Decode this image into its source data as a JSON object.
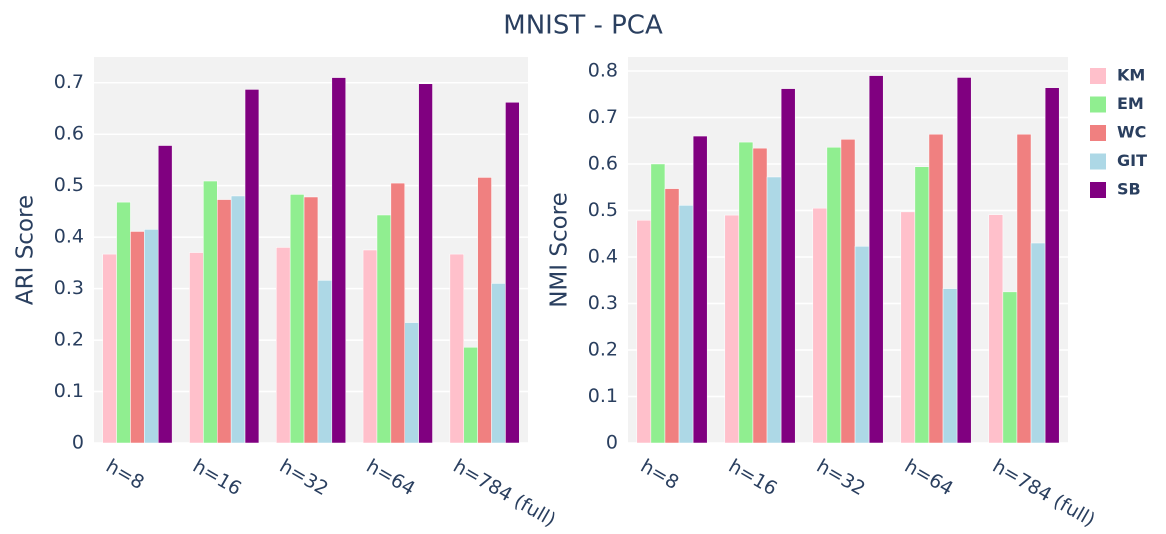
{
  "title": "MNIST - PCA",
  "chart_data": [
    {
      "type": "bar",
      "ylabel": "ARI Score",
      "categories": [
        "h=8",
        "h=16",
        "h=32",
        "h=64",
        "h=784 (full)"
      ],
      "ylim": [
        0,
        0.75
      ],
      "yticks": [
        0,
        0.1,
        0.2,
        0.3,
        0.4,
        0.5,
        0.6,
        0.7
      ],
      "grid": true,
      "series": [
        {
          "name": "KM",
          "color": "#ffc0cb",
          "values": [
            0.367,
            0.37,
            0.38,
            0.375,
            0.367
          ]
        },
        {
          "name": "EM",
          "color": "#90ee90",
          "values": [
            0.468,
            0.509,
            0.483,
            0.443,
            0.186
          ]
        },
        {
          "name": "WC",
          "color": "#f08080",
          "values": [
            0.411,
            0.473,
            0.478,
            0.505,
            0.516
          ]
        },
        {
          "name": "GIT",
          "color": "#add8e6",
          "values": [
            0.415,
            0.48,
            0.316,
            0.234,
            0.31
          ]
        },
        {
          "name": "SB",
          "color": "#800080",
          "values": [
            0.578,
            0.687,
            0.71,
            0.698,
            0.662
          ]
        }
      ]
    },
    {
      "type": "bar",
      "ylabel": "NMI Score",
      "categories": [
        "h=8",
        "h=16",
        "h=32",
        "h=64",
        "h=784 (full)"
      ],
      "ylim": [
        0,
        0.83
      ],
      "yticks": [
        0,
        0.1,
        0.2,
        0.3,
        0.4,
        0.5,
        0.6,
        0.7,
        0.8
      ],
      "grid": true,
      "series": [
        {
          "values": [
            0.479,
            0.49,
            0.505,
            0.497,
            0.491
          ]
        },
        {
          "values": [
            0.6,
            0.647,
            0.636,
            0.594,
            0.325
          ]
        },
        {
          "values": [
            0.547,
            0.634,
            0.653,
            0.664,
            0.664
          ]
        },
        {
          "values": [
            0.511,
            0.572,
            0.423,
            0.332,
            0.43
          ]
        },
        {
          "values": [
            0.66,
            0.762,
            0.79,
            0.786,
            0.764
          ]
        }
      ]
    }
  ]
}
